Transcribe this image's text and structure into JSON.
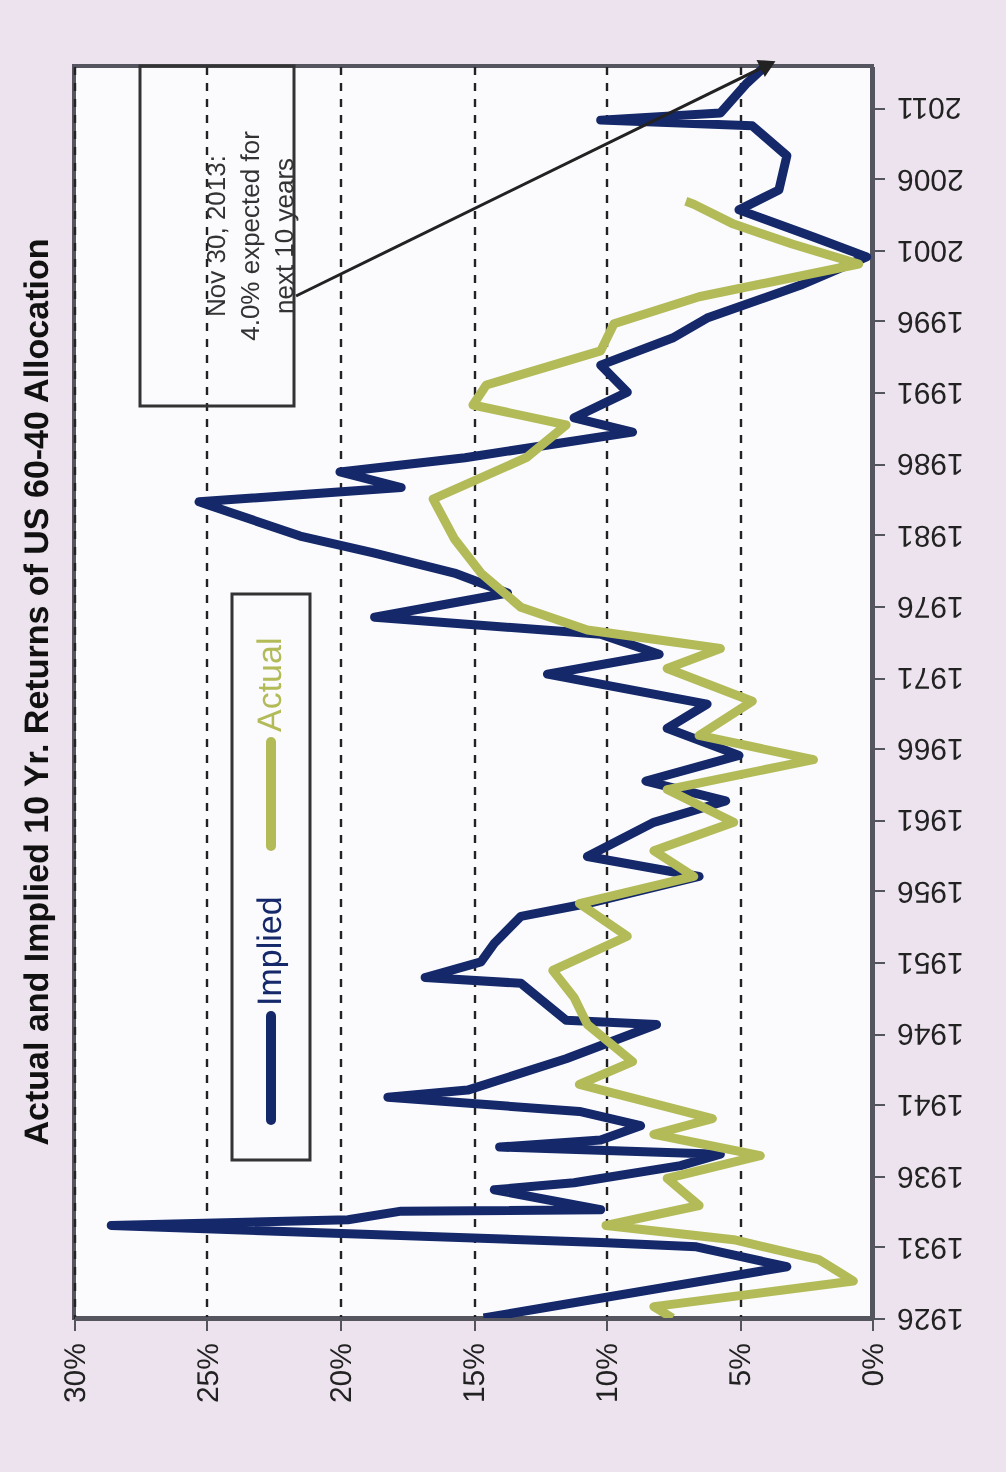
{
  "chart_data": {
    "type": "line",
    "title": "Actual and Implied 10 Yr. Returns of US 60-40 Allocation",
    "ylim": [
      1926,
      2013.9
    ],
    "yticks": [
      1926,
      1931,
      1936,
      1941,
      1946,
      1951,
      1956,
      1961,
      1966,
      1971,
      1976,
      1981,
      1986,
      1991,
      1996,
      2001,
      2006,
      2011
    ],
    "xlim": [
      30,
      0
    ],
    "xticks": [
      {
        "value": 30,
        "label": "30%"
      },
      {
        "value": 25,
        "label": "25%"
      },
      {
        "value": 20,
        "label": "20%"
      },
      {
        "value": 15,
        "label": "15%"
      },
      {
        "value": 10,
        "label": "10%"
      },
      {
        "value": 5,
        "label": "5%"
      },
      {
        "value": 0,
        "label": "0%"
      }
    ],
    "grid": "x",
    "legend": "left",
    "line_style": "solid",
    "series": [
      {
        "name": "Implied",
        "color": "#14286a",
        "values": [
          1926,
          1929.6,
          1931,
          1931.3,
          1932.5,
          1932.9,
          1933.5,
          1933.6,
          1935,
          1935.5,
          1936.7,
          1937.5,
          1938,
          1938.5,
          1939.5,
          1940.5,
          1941.5,
          1942,
          1944.2,
          1946.6,
          1946.9,
          1949.5,
          1949.9,
          1951,
          1952.3,
          1954.2,
          1955.1,
          1957,
          1958.4,
          1960.8,
          1962.3,
          1963.7,
          1965.5,
          1967.4,
          1969.1,
          1971.2,
          1972.6,
          1974,
          1975.2,
          1976.9,
          1978.3,
          1979.7,
          1980.9,
          1983.3,
          1984.3,
          1985.4,
          1986.4,
          1988.2,
          1989.2,
          1991,
          1992.9,
          1994.8,
          1996.2,
          1998.5,
          2000.5,
          2001.9,
          2003.8,
          2005.2,
          2007.6,
          2009.7,
          2010.1,
          2010.6,
          2012.7,
          2013.9
        ],
        "x": [
          14.6,
          3.2,
          6.6,
          10.2,
          28.6,
          19.7,
          17.7,
          10.2,
          14.2,
          11.2,
          7.2,
          5.7,
          14,
          10.2,
          8.7,
          11,
          18.2,
          15.2,
          11.5,
          8.1,
          11.5,
          13.2,
          16.8,
          14.7,
          14.2,
          13.2,
          10.7,
          6.5,
          10.7,
          8.2,
          5.5,
          8.5,
          5,
          7.7,
          6.2,
          12.2,
          8,
          10.2,
          18.7,
          13.7,
          15.7,
          18.7,
          21.5,
          25.3,
          17.7,
          20,
          15.3,
          9,
          11.2,
          9.2,
          10.2,
          7.5,
          6.2,
          2.7,
          0.2,
          2.2,
          5,
          3.5,
          3.2,
          4.5,
          10.2,
          5.7,
          4.7,
          4.0
        ]
      },
      {
        "name": "Actual",
        "color": "#b3bb58",
        "values": [
          1926,
          1926.8,
          1928.6,
          1930.1,
          1931.5,
          1932.5,
          1933.9,
          1935.8,
          1937.4,
          1938.9,
          1940,
          1942.4,
          1944,
          1946.6,
          1948.5,
          1950.4,
          1952.8,
          1955.1,
          1957,
          1958.8,
          1960.8,
          1963.1,
          1965.2,
          1966.9,
          1969.3,
          1971.6,
          1973,
          1974.3,
          1975.9,
          1978.3,
          1980.7,
          1983.5,
          1986.4,
          1988.7,
          1990.1,
          1991.5,
          1993.9,
          1995.8,
          1997.7,
          2000,
          2001.4,
          2002.8,
          2004.2,
          2004.4
        ],
        "x": [
          7.5,
          8.2,
          0.7,
          2,
          5.2,
          10,
          6.5,
          7.7,
          4.2,
          8.2,
          6,
          11,
          9,
          10.7,
          11.2,
          12,
          9.2,
          11,
          6.7,
          8.2,
          5.2,
          7.7,
          2.2,
          6.5,
          4.5,
          7.7,
          5.7,
          10.7,
          13.2,
          14.7,
          15.7,
          16.5,
          13,
          11.5,
          15,
          14.5,
          10.2,
          9.7,
          6.5,
          0.5,
          3,
          5.2,
          6.7,
          7.0
        ]
      }
    ],
    "annotations": [
      {
        "text": "Nov 30, 2013:\n4.0% expected for\nnext 10 years",
        "x": 4.0,
        "y": 2013.9
      }
    ]
  }
}
